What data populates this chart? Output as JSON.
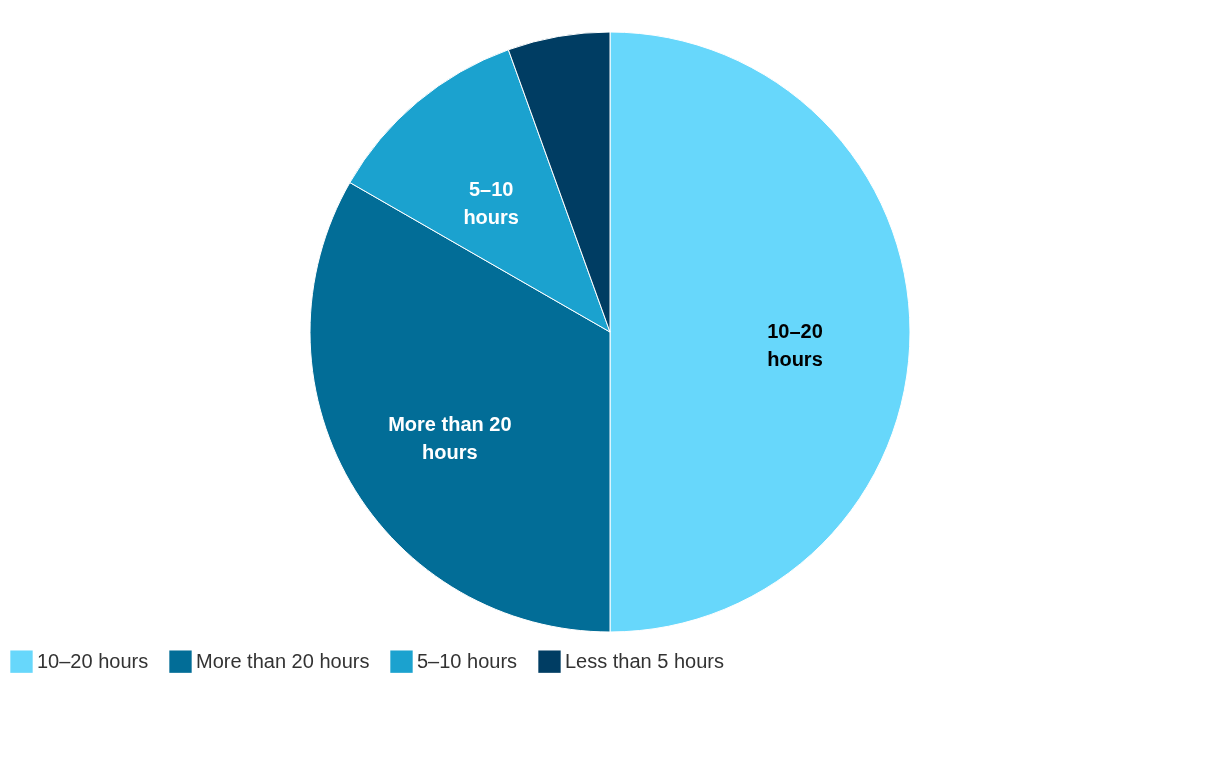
{
  "chart_data": {
    "type": "pie",
    "categories": [
      "10–20 hours",
      "More than 20 hours",
      "5–10 hours",
      "Less than 5 hours"
    ],
    "values": [
      50,
      33.3,
      11.2,
      5.5
    ],
    "colors": [
      "#67d7fb",
      "#026d97",
      "#1ba2cf",
      "#003d63"
    ],
    "annotations": [
      {
        "text": "10–20 hours",
        "x": "10–20 hours"
      },
      {
        "text": "More than 20 hours",
        "x": "More than 20 hours"
      },
      {
        "text": "5–10 hours",
        "x": "5–10 hours"
      }
    ],
    "legend": "bottom left"
  }
}
